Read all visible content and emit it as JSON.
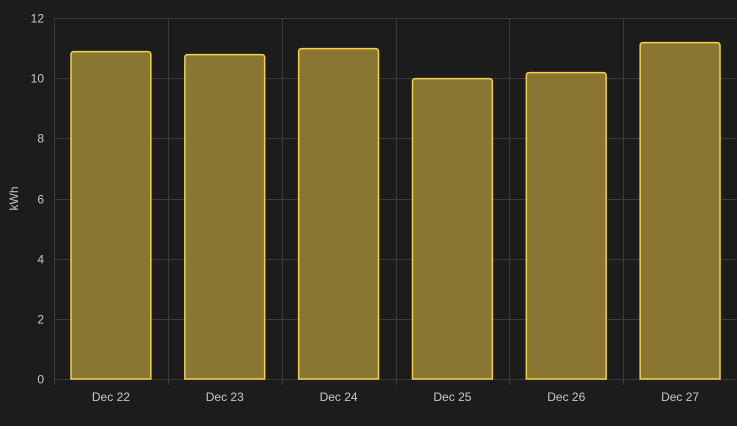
{
  "chart_data": {
    "type": "bar",
    "categories": [
      "Dec 22",
      "Dec 23",
      "Dec 24",
      "Dec 25",
      "Dec 26",
      "Dec 27"
    ],
    "series": [
      {
        "values": [
          10.9,
          10.8,
          11.0,
          10.0,
          10.2,
          11.2
        ]
      }
    ],
    "title": "",
    "xlabel": "",
    "ylabel": "kWh",
    "ylim": [
      0,
      12
    ],
    "yticks": [
      0,
      2,
      4,
      6,
      8,
      10,
      12
    ],
    "grid": true,
    "legend": "none"
  },
  "colors": {
    "background": "#1c1c1c",
    "grid": "#3a3a3a",
    "axis_text": "#c8c8c8",
    "bar_fill": "#8a7633",
    "bar_stroke": "#f5d04a"
  }
}
